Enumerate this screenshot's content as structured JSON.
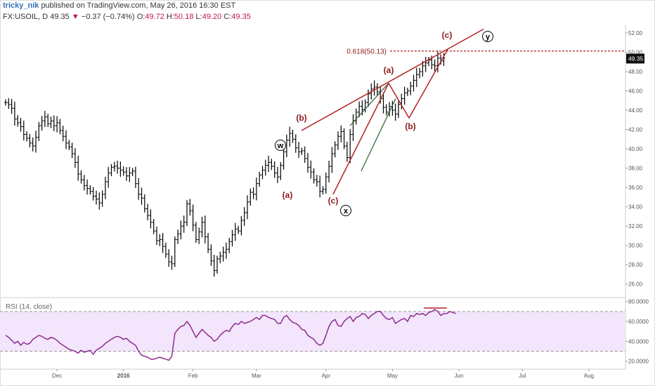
{
  "header": {
    "author": "tricky_nik",
    "published_text": "published on TradingView.com, May 26, 2016 16:30 EST",
    "symbol": "FX:USOIL, D",
    "last": "49.35",
    "change_arrow": "▼",
    "change": "−0.37 (−0.74%)",
    "o_label": "O:",
    "o": "49.72",
    "h_label": "H:",
    "h": "50.18",
    "l_label": "L:",
    "l": "49.20",
    "c_label": "C:",
    "c": "49.35"
  },
  "chart_data": [
    {
      "type": "ohlc",
      "ylim": [
        24.6,
        52.8
      ],
      "yticks": [
        "52.00",
        "50.00",
        "48.00",
        "46.00",
        "44.00",
        "42.00",
        "40.00",
        "38.00",
        "36.00",
        "34.00",
        "32.00",
        "30.00",
        "28.00",
        "26.00"
      ],
      "last_price_label": "49.35",
      "xticks": [
        "Dec",
        "2016",
        "Feb",
        "Mar",
        "Apr",
        "May",
        "Jun",
        "Jul",
        "Aug"
      ],
      "series": [
        {
          "name": "FX:USOIL, D",
          "close": [
            44.8,
            44.6,
            44.2,
            43.1,
            42.7,
            42.3,
            41.5,
            41.1,
            40.6,
            40.3,
            41.2,
            42.4,
            42.9,
            43.3,
            42.6,
            42.9,
            42.4,
            42.7,
            41.9,
            41.3,
            40.6,
            40.2,
            39.5,
            38.6,
            37.4,
            36.8,
            36.2,
            35.9,
            35.6,
            35.1,
            34.8,
            34.4,
            35.3,
            36.6,
            37.5,
            38.1,
            38.2,
            38.0,
            37.8,
            37.6,
            37.2,
            37.5,
            37.7,
            36.4,
            35.3,
            34.9,
            33.8,
            33.1,
            32.4,
            31.5,
            30.5,
            30.6,
            29.9,
            29.1,
            28.3,
            28.1,
            30.6,
            31.2,
            32.0,
            32.4,
            34.3,
            33.6,
            32.1,
            30.6,
            31.4,
            32.4,
            30.9,
            29.6,
            28.4,
            27.4,
            28.6,
            28.9,
            29.3,
            29.6,
            30.4,
            31.1,
            31.7,
            31.5,
            32.6,
            33.4,
            34.5,
            35.5,
            35.3,
            36.4,
            37.3,
            37.8,
            38.3,
            38.6,
            38.2,
            37.5,
            37.1,
            38.3,
            39.7,
            40.9,
            41.6,
            41.0,
            40.1,
            39.7,
            39.8,
            39.0,
            38.1,
            37.6,
            36.8,
            36.6,
            35.6,
            35.8,
            37.1,
            38.2,
            39.5,
            40.4,
            41.3,
            41.8,
            40.3,
            39.1,
            41.5,
            42.9,
            43.8,
            44.4,
            44.1,
            44.8,
            45.7,
            46.2,
            46.4,
            45.9,
            45.2,
            44.3,
            43.8,
            44.4,
            44.0,
            43.6,
            44.6,
            45.2,
            45.8,
            46.0,
            46.5,
            47.1,
            47.7,
            48.0,
            48.6,
            48.9,
            49.2,
            48.7,
            48.6,
            49.4,
            49.1,
            49.4
          ]
        }
      ],
      "annotations": [
        "(c)",
        "(y)",
        "(a)",
        "(b)",
        "(w)",
        "(a)",
        "(c)",
        "(x)",
        "(b)"
      ],
      "fib_label": "0.618(50.13)",
      "fib_level": 50.13
    },
    {
      "type": "line",
      "title": "RSI (14, close)",
      "ylim": [
        12,
        84
      ],
      "yticks": [
        "80.0000",
        "60.0000",
        "40.0000",
        "20.0000"
      ],
      "bands": [
        30,
        70
      ],
      "series": [
        {
          "name": "RSI (14, close)",
          "values": [
            46,
            44,
            41,
            38,
            40,
            36,
            39,
            37,
            38,
            42,
            44,
            46,
            45,
            43,
            42,
            44,
            43,
            41,
            38,
            36,
            34,
            32,
            31,
            30,
            28,
            31,
            29,
            30,
            31,
            27,
            31,
            33,
            35,
            38,
            40,
            42,
            44,
            45,
            44,
            42,
            43,
            40,
            38,
            36,
            30,
            26,
            25,
            24,
            22,
            22,
            23,
            24,
            23,
            22,
            21,
            25,
            48,
            52,
            55,
            56,
            60,
            56,
            50,
            44,
            48,
            52,
            49,
            46,
            44,
            40,
            42,
            46,
            49,
            51,
            50,
            55,
            58,
            57,
            60,
            58,
            59,
            60,
            62,
            64,
            62,
            66,
            66,
            64,
            63,
            62,
            58,
            58,
            64,
            66,
            62,
            59,
            58,
            56,
            52,
            51,
            46,
            44,
            42,
            38,
            36,
            38,
            46,
            55,
            60,
            62,
            56,
            55,
            60,
            63,
            65,
            60,
            64,
            65,
            68,
            67,
            63,
            66,
            68,
            70,
            70,
            66,
            63,
            62,
            64,
            58,
            60,
            62,
            63,
            60,
            66,
            65,
            68,
            67,
            68,
            66,
            69,
            70,
            72,
            70,
            66,
            68,
            68,
            70,
            69,
            68
          ]
        }
      ],
      "overbought_marker": "top-right"
    }
  ],
  "colors": {
    "candle": "#000000",
    "trend_red": "#b22222",
    "label_red": "#8b1a1a",
    "green_line": "#2e5e2e",
    "rsi_line": "#8e2c8e",
    "rsi_band": "#f3e5fb",
    "band_border": "#999999",
    "axis_text": "#555555",
    "price_tag": "#111111"
  }
}
